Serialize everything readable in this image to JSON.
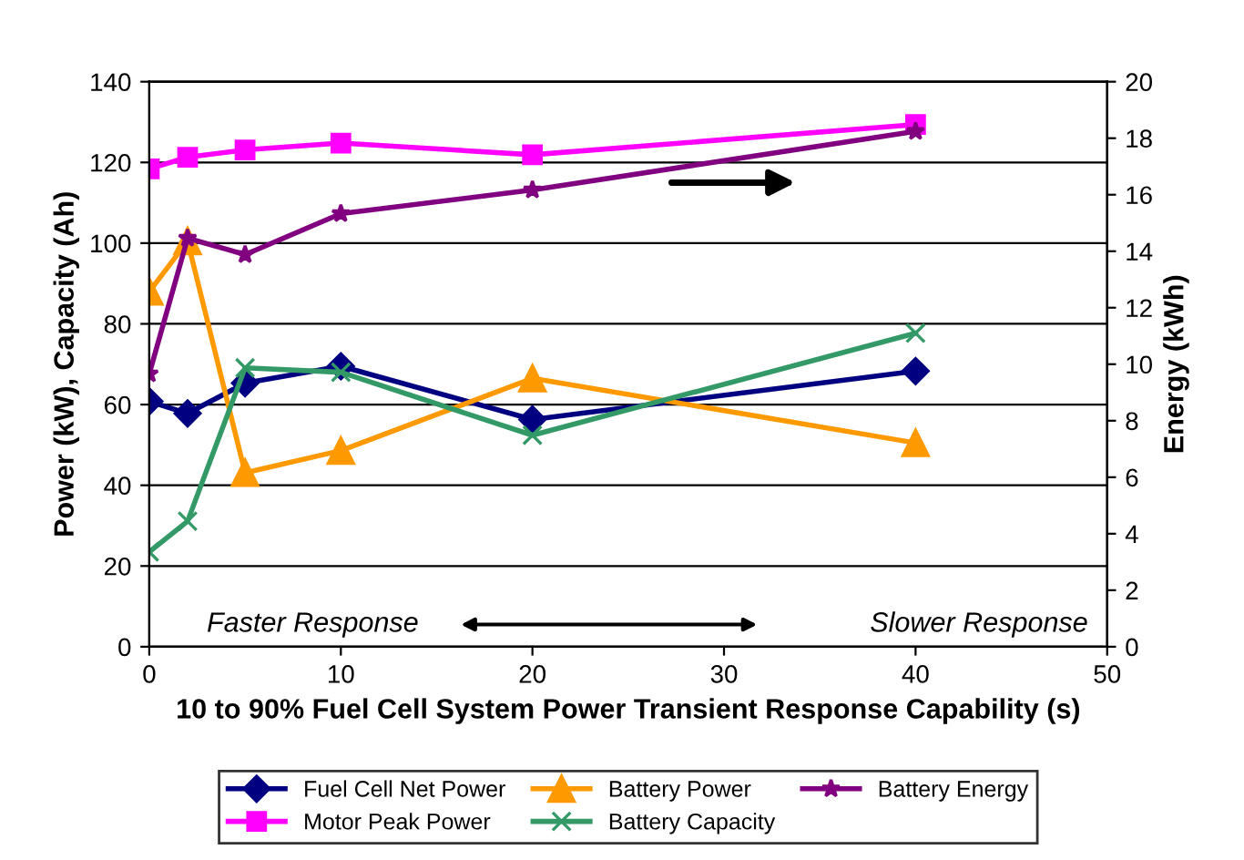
{
  "chart_data": {
    "type": "line",
    "xlabel": "10 to 90% Fuel Cell System Power Transient Response Capability (s)",
    "ylabel": "Power (kW), Capacity (Ah)",
    "y2label": "Energy (kWh)",
    "x": [
      0,
      2,
      5,
      10,
      20,
      40
    ],
    "xlim": [
      0,
      50
    ],
    "xticks": [
      0,
      10,
      20,
      30,
      40,
      50
    ],
    "ylim": [
      0,
      140
    ],
    "yticks": [
      0,
      20,
      40,
      60,
      80,
      100,
      120,
      140
    ],
    "y2lim": [
      0,
      20
    ],
    "y2ticks": [
      0,
      2,
      4,
      6,
      8,
      10,
      12,
      14,
      16,
      18,
      20
    ],
    "grid": "y",
    "legend": "bottom",
    "annotations": [
      "Faster Response",
      "Slower Response"
    ],
    "series": [
      {
        "name": "Fuel Cell Net Power",
        "color": "#000080",
        "marker": "diamond",
        "values": [
          60.8,
          57.8,
          65.3,
          69.5,
          56.3,
          68.3
        ]
      },
      {
        "name": "Motor Peak Power",
        "color": "#ff00ff",
        "marker": "square",
        "values": [
          118.4,
          121.3,
          123.1,
          124.8,
          121.9,
          129.4
        ]
      },
      {
        "name": "Battery Power",
        "color": "#ff9900",
        "marker": "triangle",
        "values": [
          88,
          100.5,
          43.1,
          48.6,
          66.5,
          50.5
        ]
      },
      {
        "name": "Battery Capacity",
        "color": "#339966",
        "marker": "cross",
        "values": [
          23.5,
          31.1,
          69.1,
          68,
          52.4,
          77.7
        ]
      },
      {
        "name": "Battery Energy",
        "color": "#800080",
        "marker": "star",
        "axis": "y2",
        "values": [
          9.66,
          14.46,
          13.88,
          15.33,
          16.17,
          18.24
        ]
      }
    ]
  }
}
